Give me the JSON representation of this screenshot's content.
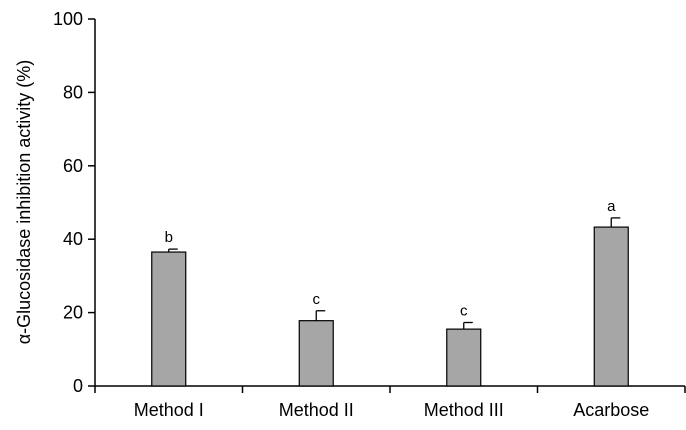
{
  "chart_data": {
    "type": "bar",
    "title": "",
    "xlabel": "",
    "ylabel": "α-Glucosidase inhibition activity (%)",
    "ylim": [
      0,
      100
    ],
    "yticks": [
      0,
      20,
      40,
      60,
      80,
      100
    ],
    "grid": false,
    "categories": [
      "Method I",
      "Method II",
      "Method III",
      "Acarbose"
    ],
    "values": [
      36.5,
      17.8,
      15.5,
      43.3
    ],
    "errors": [
      0.8,
      2.7,
      1.8,
      2.5
    ],
    "annotations": [
      "b",
      "c",
      "c",
      "a"
    ],
    "colors": {
      "bar": "#a6a6a6",
      "stroke": "#000000"
    }
  }
}
